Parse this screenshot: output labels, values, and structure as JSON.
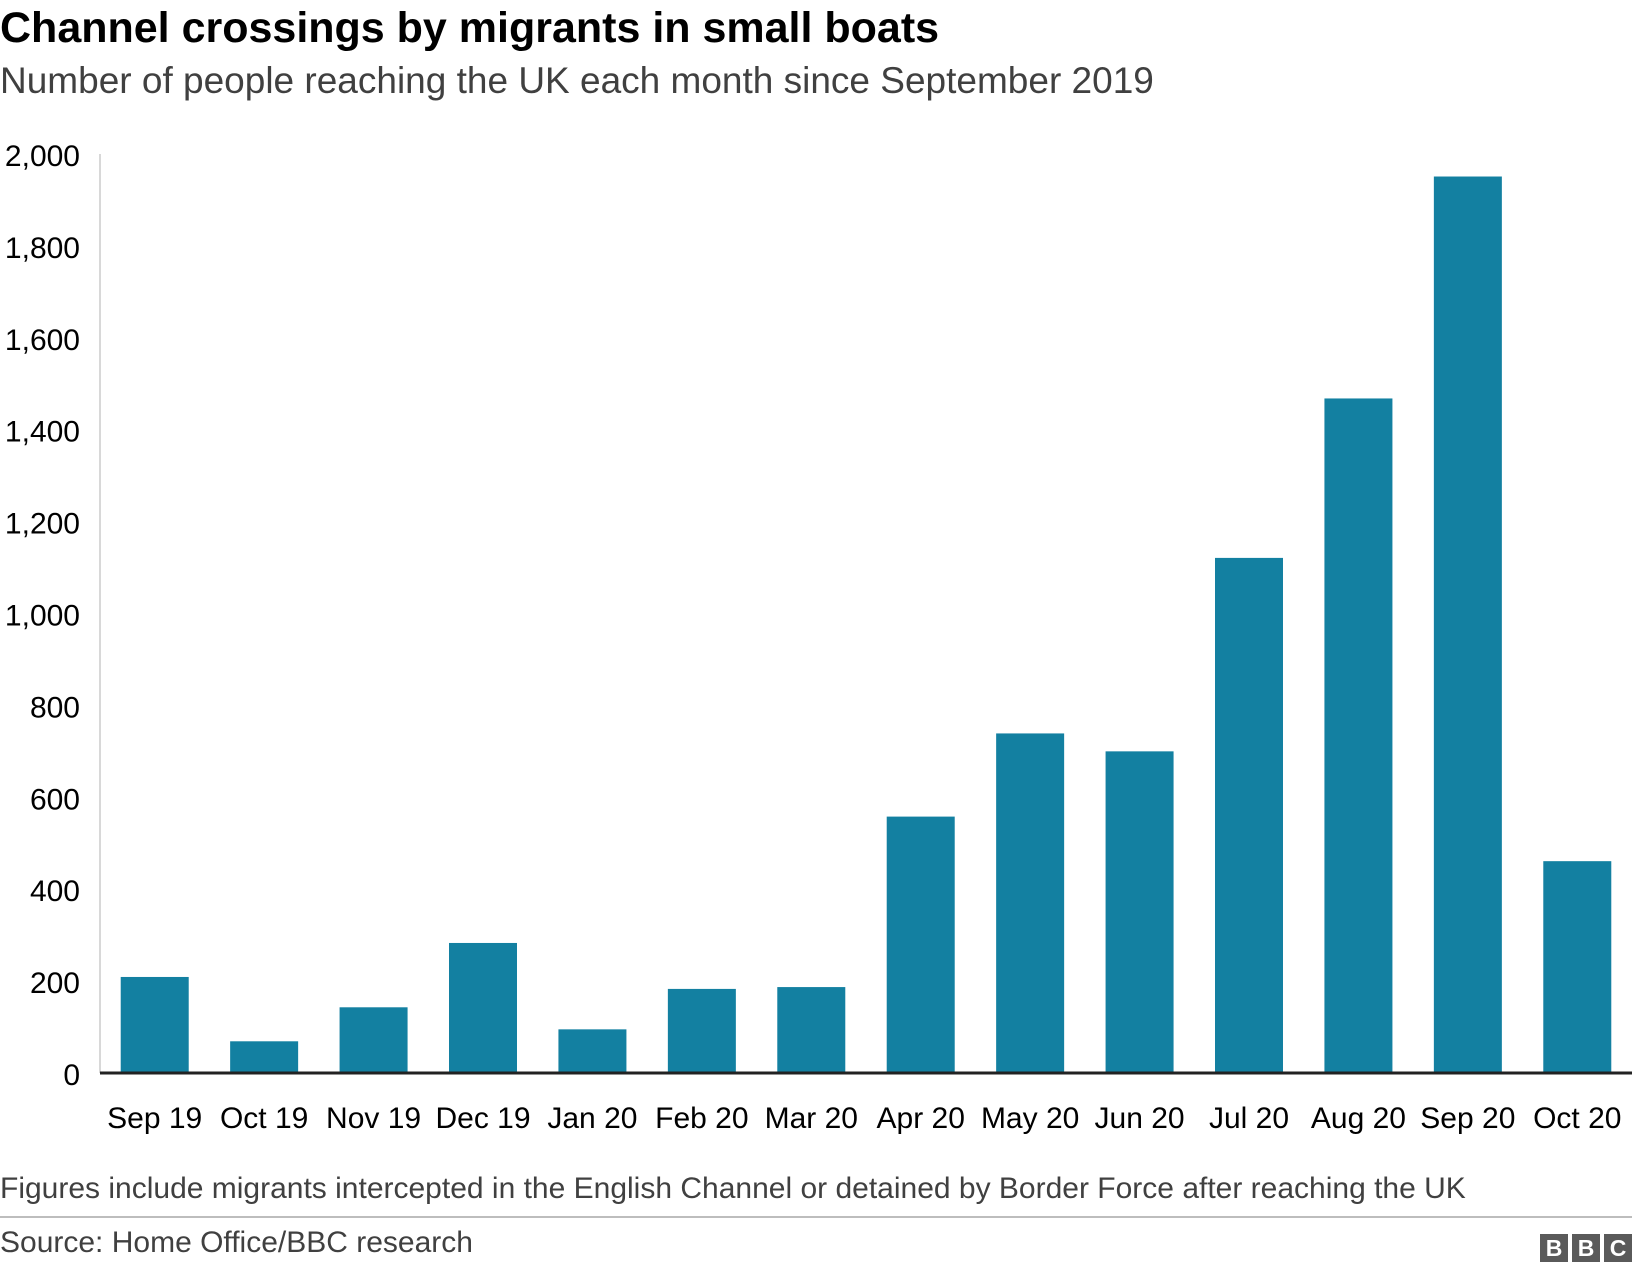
{
  "chart_data": {
    "type": "bar",
    "title": "Channel crossings by migrants in small boats",
    "subtitle": "Number of people reaching the UK each month since September 2019",
    "categories": [
      "Sep 19",
      "Oct 19",
      "Nov 19",
      "Dec 19",
      "Jan 20",
      "Feb 20",
      "Mar 20",
      "Apr 20",
      "May 20",
      "Jun 20",
      "Jul 20",
      "Aug 20",
      "Sep 20",
      "Oct 20"
    ],
    "values": [
      209,
      69,
      143,
      283,
      95,
      183,
      187,
      558,
      739,
      700,
      1121,
      1468,
      1951,
      461
    ],
    "yticks": [
      0,
      200,
      400,
      600,
      800,
      1000,
      1200,
      1400,
      1600,
      1800,
      2000
    ],
    "ytick_labels": [
      "0",
      "200",
      "400",
      "600",
      "800",
      "1,000",
      "1,200",
      "1,400",
      "1,600",
      "1,800",
      "2,000"
    ],
    "ylim": [
      0,
      2000
    ],
    "xlabel": "",
    "ylabel": "",
    "grid": false,
    "bar_color": "#1380a1"
  },
  "footnote": "Figures include migrants intercepted in the English Channel or detained by Border Force after reaching the UK",
  "source": "Source: Home Office/BBC research",
  "logo": {
    "letters": [
      "B",
      "B",
      "C"
    ]
  }
}
